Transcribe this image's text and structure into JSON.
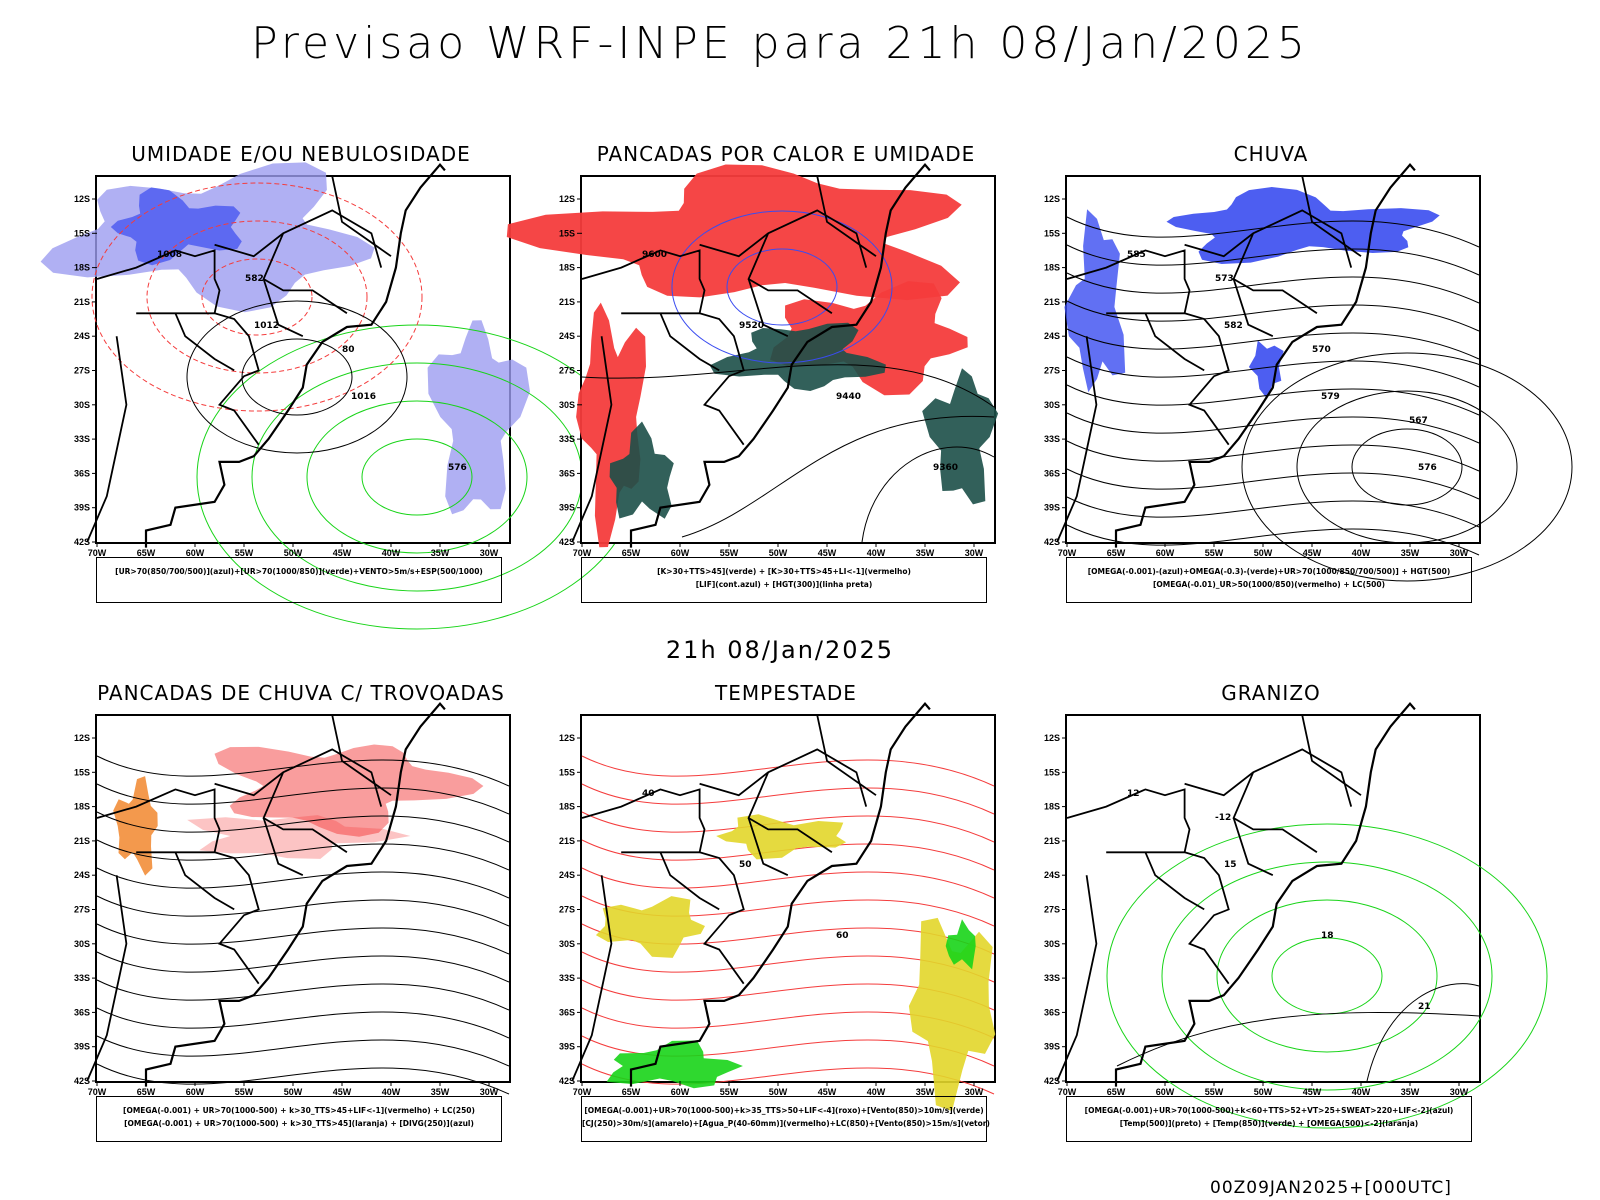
{
  "title": "Previsao WRF-INPE  para 21h 08/Jan/2025",
  "subtitle": "21h 08/Jan/2025",
  "footer": "00Z09JAN2025+[000UTC]",
  "lat_labels": [
    "12S",
    "15S",
    "18S",
    "21S",
    "24S",
    "27S",
    "30S",
    "33S",
    "36S",
    "39S",
    "42S"
  ],
  "lon_labels": [
    "70W",
    "65W",
    "60W",
    "55W",
    "50W",
    "45W",
    "40W",
    "35W",
    "30W"
  ],
  "panels": [
    {
      "title": "UMIDADE E/OU NEBULOSIDADE",
      "legend": [
        "[UR>70(850/700/500)](azul)+[UR>70(1000/850)](verde)+VENTO>5m/s+ESP(500/1000)"
      ],
      "labels": [
        "1008",
        "1012",
        "1016",
        "576",
        "582",
        "80"
      ]
    },
    {
      "title": "PANCADAS POR CALOR E UMIDADE",
      "legend": [
        "[K>30+TTS>45](verde) + [K>30+TTS>45+LI<-1](vermelho)",
        "[LIF](cont.azul) + [HGT(300)](linha preta)"
      ],
      "labels": [
        "9600",
        "9520",
        "9440",
        "9360"
      ]
    },
    {
      "title": "CHUVA",
      "legend": [
        "[OMEGA(-0.001)-(azul)+OMEGA(-0.3)-(verde)+UR>70(1000/850/700/500)] + HGT(500)",
        "[OMEGA(-0.01)_UR>50(1000/850)(vermelho) + LC(500)"
      ],
      "labels": [
        "585",
        "582",
        "579",
        "576",
        "573",
        "570",
        "567"
      ]
    },
    {
      "title": "PANCADAS DE CHUVA C/ TROVOADAS",
      "legend": [
        "[OMEGA(-0.001) + UR>70(1000-500) + k>30_TTS>45+LIF<-1](vermelho) + LC(250)",
        "[OMEGA(-0.001) + UR>70(1000-500) + k>30_TTS>45](laranja) + [DIVG(250)](azul)"
      ],
      "labels": []
    },
    {
      "title": "TEMPESTADE",
      "legend": [
        "[OMEGA(-0.001)+UR>70(1000-500)+k>35_TTS>50+LIF<-4](roxo)+[Vento(850)>10m/s](verde)",
        "[CJ(250)>30m/s](amarelo)+[Agua_P(40-60mm)](vermelho)+LC(850)+[Vento(850)>15m/s](vetor)"
      ],
      "labels": [
        "40",
        "50",
        "60"
      ]
    },
    {
      "title": "GRANIZO",
      "legend": [
        "[OMEGA(-0.001)+UR>70(1000-500)+k<60+TTS>52+VT>25+SWEAT>220+LIF<-2](azul)",
        "[Temp(500)](preto) + [Temp(850)](verde) + [OMEGA(500)<-2](laranja)"
      ],
      "labels": [
        "12",
        "15",
        "18",
        "21",
        "-12"
      ]
    }
  ],
  "colors": {
    "blue": "#3a4cf0",
    "lavender": "#9c9cf0",
    "green": "#18d418",
    "red": "#f43c3c",
    "darkgreen": "#1c4f48",
    "yellow": "#e2d62a",
    "orange": "#f08020"
  }
}
